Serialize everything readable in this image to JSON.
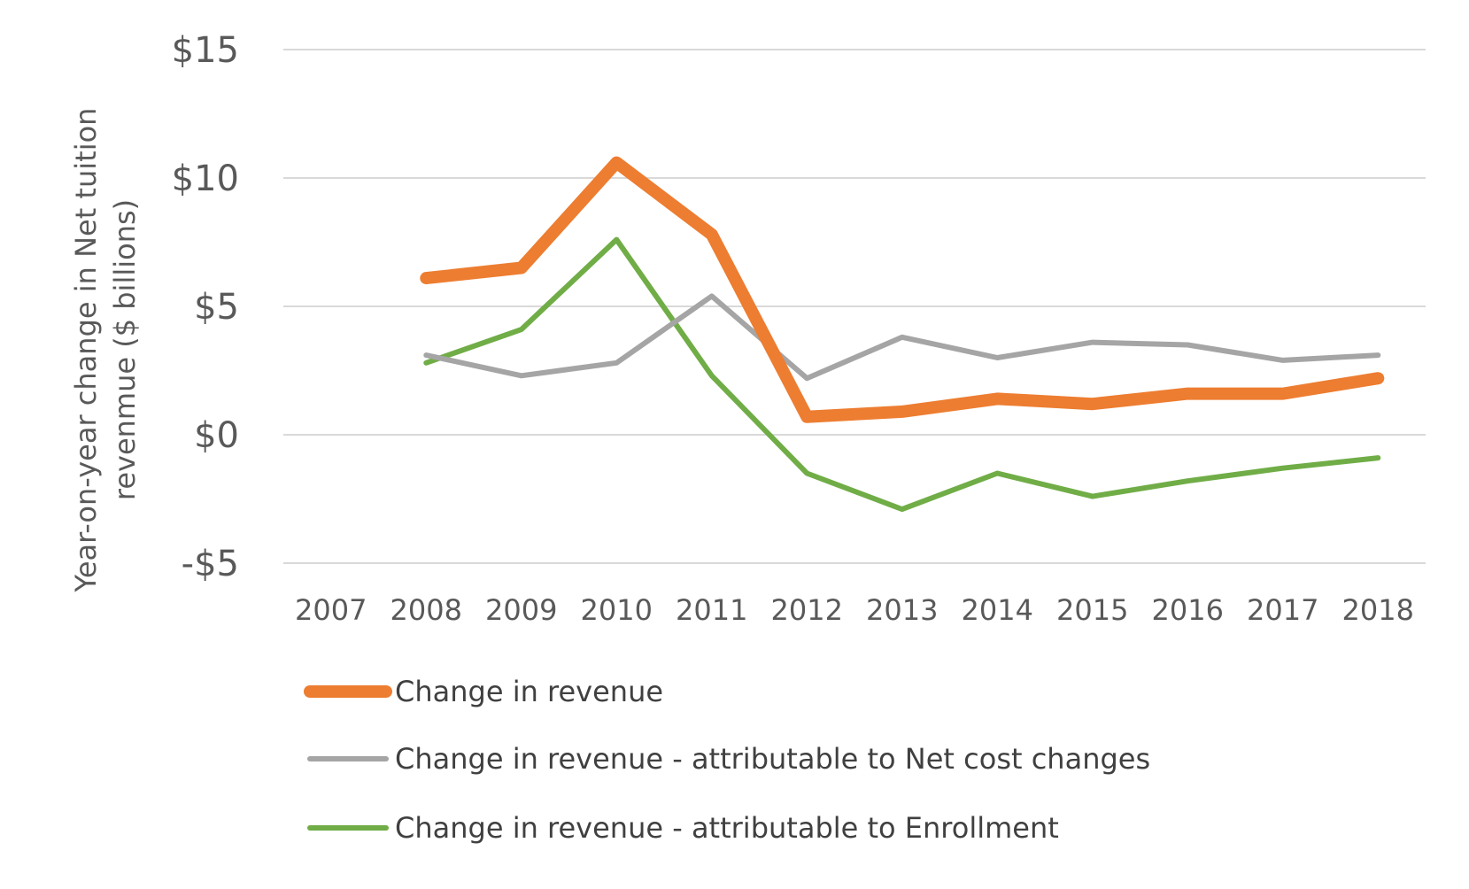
{
  "chart_data": {
    "type": "line",
    "title": "",
    "ylabel_lines": [
      "Year-on-year change in Net tuition",
      "revenmue ($ billions)"
    ],
    "xlabel": "",
    "ylim": [
      -5,
      15
    ],
    "yticks": [
      15,
      10,
      5,
      0,
      -5
    ],
    "ytick_labels": [
      "$15",
      "$10",
      "$5",
      "$0",
      "-$5"
    ],
    "categories": [
      "2007",
      "2008",
      "2009",
      "2010",
      "2011",
      "2012",
      "2013",
      "2014",
      "2015",
      "2016",
      "2017",
      "2018"
    ],
    "grid": "horizontal",
    "legend_placement": "bottom",
    "series": [
      {
        "name": "Change in revenue",
        "color": "#ED7D31",
        "values": [
          null,
          6.1,
          6.5,
          10.6,
          7.8,
          0.7,
          0.9,
          1.4,
          1.2,
          1.6,
          1.6,
          2.2
        ]
      },
      {
        "name": "Change in revenue - attributable to Net cost changes",
        "color": "#A5A5A5",
        "values": [
          null,
          3.1,
          2.3,
          2.8,
          5.4,
          2.2,
          3.8,
          3.0,
          3.6,
          3.5,
          2.9,
          3.1
        ]
      },
      {
        "name": "Change in revenue - attributable to Enrollment",
        "color": "#70AD47",
        "values": [
          null,
          2.8,
          4.1,
          7.6,
          2.3,
          -1.5,
          -2.9,
          -1.5,
          -2.4,
          -1.8,
          -1.3,
          -0.9
        ]
      }
    ]
  }
}
